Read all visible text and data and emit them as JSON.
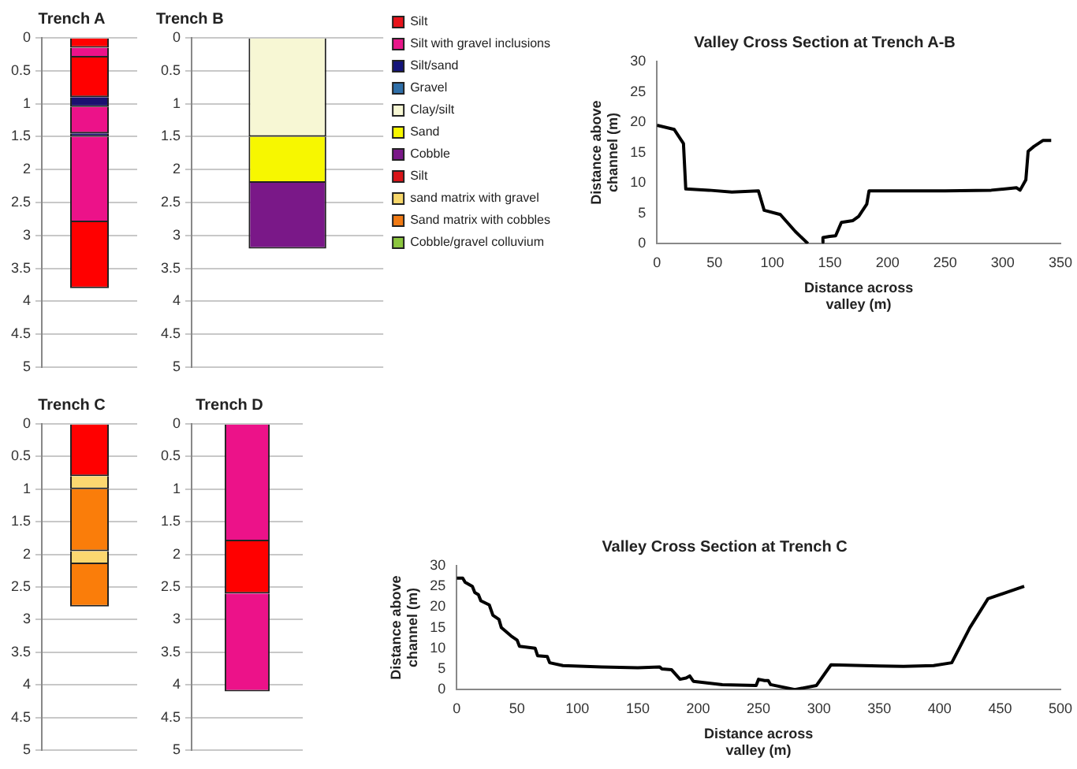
{
  "chart_data": [
    {
      "type": "bar",
      "title": "Trench A",
      "categories": [
        null
      ],
      "stacked": true,
      "ylim": [
        5,
        0
      ],
      "yticks": [
        0,
        0.5,
        1,
        1.5,
        2,
        2.5,
        3,
        3.5,
        4,
        4.5,
        5
      ],
      "grid": "y",
      "tick_labels": "y",
      "series": [
        {
          "color": "#ff0000",
          "values": [
            0.15
          ]
        },
        {
          "color": "#ec1289",
          "values": [
            0.15
          ]
        },
        {
          "color": "#ff0000",
          "values": [
            0.6
          ]
        },
        {
          "color": "#1c1070",
          "values": [
            0.15
          ]
        },
        {
          "color": "#ec1289",
          "values": [
            0.4
          ]
        },
        {
          "color": "#1c1070",
          "values": [
            0.05
          ]
        },
        {
          "color": "#ec1289",
          "values": [
            1.3
          ]
        },
        {
          "color": "#ff0000",
          "values": [
            1.0
          ]
        }
      ]
    },
    {
      "type": "bar",
      "title": "Trench B",
      "categories": [
        null
      ],
      "stacked": true,
      "ylim": [
        5,
        0
      ],
      "yticks": [
        0,
        0.5,
        1,
        1.5,
        2,
        2.5,
        3,
        3.5,
        4,
        4.5,
        5
      ],
      "grid": "y",
      "tick_labels": "y",
      "legend": "right",
      "series": [
        {
          "name": "Silt",
          "color": "#e8141c",
          "values": [
            null
          ]
        },
        {
          "name": "Silt with gravel inclusions",
          "color": "#e8178a",
          "values": [
            null
          ]
        },
        {
          "name": "Silt/sand",
          "color": "#14147a",
          "values": [
            null
          ]
        },
        {
          "name": "Gravel",
          "color": "#2f6fa8",
          "values": [
            null
          ]
        },
        {
          "name": "Clay/silt",
          "color": "#f7f7d4",
          "values": [
            1.5
          ]
        },
        {
          "name": "Sand",
          "color": "#f7f700",
          "values": [
            0.7
          ]
        },
        {
          "name": "Cobble",
          "color": "#7a1888",
          "values": [
            1.0
          ]
        },
        {
          "name": "Silt",
          "color": "#d81418",
          "values": [
            null
          ]
        },
        {
          "name": "sand matrix with gravel",
          "color": "#f7d76a",
          "values": [
            null
          ]
        },
        {
          "name": "Sand matrix with cobbles",
          "color": "#f07a14",
          "values": [
            null
          ]
        },
        {
          "name": "Cobble/gravel colluvium",
          "color": "#8cc63f",
          "values": [
            null
          ]
        }
      ]
    },
    {
      "type": "line",
      "title": "Valley Cross Section at Trench A-B",
      "xlabel": "Distance across valley (m)",
      "ylabel": "Distance above channel (m)",
      "xlim": [
        0,
        350
      ],
      "xticks": [
        0,
        50,
        100,
        150,
        200,
        250,
        300,
        350
      ],
      "ylim": [
        0,
        30
      ],
      "yticks": [
        0,
        5,
        10,
        15,
        20,
        25,
        30
      ],
      "x": [
        0,
        15,
        23,
        25,
        45,
        65,
        88,
        93,
        107,
        120,
        131,
        137,
        143,
        144,
        150,
        155,
        160,
        170,
        175,
        182,
        184,
        250,
        290,
        312,
        315,
        320,
        322,
        327,
        335,
        342
      ],
      "series": [
        {
          "color": "#000000",
          "values": [
            19.5,
            18.8,
            16.5,
            9,
            8.8,
            8.5,
            8.7,
            5.5,
            4.8,
            2,
            0,
            null,
            0.2,
            1,
            1.2,
            1.3,
            3.5,
            3.8,
            4.5,
            6.5,
            8.7,
            8.7,
            8.8,
            9.2,
            8.8,
            10.5,
            15.2,
            16,
            17,
            17
          ]
        }
      ]
    },
    {
      "type": "bar",
      "title": "Trench C",
      "categories": [
        null
      ],
      "stacked": true,
      "ylim": [
        5,
        0
      ],
      "yticks": [
        0,
        0.5,
        1,
        1.5,
        2,
        2.5,
        3,
        3.5,
        4,
        4.5,
        5
      ],
      "grid": "y",
      "tick_labels": "y",
      "series": [
        {
          "color": "#ff0000",
          "values": [
            0.8
          ]
        },
        {
          "color": "#fcd870",
          "values": [
            0.2
          ]
        },
        {
          "color": "#fa7d0a",
          "values": [
            0.95
          ]
        },
        {
          "color": "#fcd870",
          "values": [
            0.2
          ]
        },
        {
          "color": "#fa7d0a",
          "values": [
            0.65
          ]
        }
      ]
    },
    {
      "type": "bar",
      "title": "Trench D",
      "categories": [
        null
      ],
      "stacked": true,
      "ylim": [
        5,
        0
      ],
      "yticks": [
        0,
        0.5,
        1,
        1.5,
        2,
        2.5,
        3,
        3.5,
        4,
        4.5,
        5
      ],
      "grid": "y",
      "tick_labels": "y",
      "series": [
        {
          "color": "#ec1289",
          "values": [
            1.8
          ]
        },
        {
          "color": "#ff0000",
          "values": [
            0.8
          ]
        },
        {
          "color": "#ec1289",
          "values": [
            1.5
          ]
        }
      ]
    },
    {
      "type": "line",
      "title": "Valley Cross Section at Trench C",
      "xlabel": "Distance across valley (m)",
      "ylabel": "Distance above channel (m)",
      "xlim": [
        0,
        500
      ],
      "xticks": [
        0,
        50,
        100,
        150,
        200,
        250,
        300,
        350,
        400,
        450,
        500
      ],
      "ylim": [
        0,
        30
      ],
      "yticks": [
        0,
        5,
        10,
        15,
        20,
        25,
        30
      ],
      "x": [
        0,
        5,
        7,
        13,
        15,
        18,
        20,
        27,
        30,
        35,
        37,
        45,
        50,
        52,
        65,
        67,
        75,
        77,
        88,
        120,
        150,
        168,
        170,
        178,
        185,
        190,
        193,
        196,
        220,
        248,
        250,
        255,
        258,
        260,
        280,
        298,
        310,
        350,
        370,
        395,
        410,
        425,
        440,
        470
      ],
      "series": [
        {
          "color": "#000000",
          "values": [
            27,
            27,
            26,
            25,
            23.5,
            23,
            21.5,
            20.5,
            18,
            17,
            15,
            13,
            12,
            10.5,
            10,
            8.2,
            8,
            6.5,
            5.8,
            5.5,
            5.3,
            5.5,
            5,
            4.8,
            2.5,
            2.8,
            3.3,
            2,
            1.2,
            1,
            2.5,
            2.2,
            2.2,
            1.2,
            0,
            1,
            6,
            5.7,
            5.6,
            5.8,
            6.5,
            15,
            22,
            25
          ]
        }
      ]
    }
  ]
}
